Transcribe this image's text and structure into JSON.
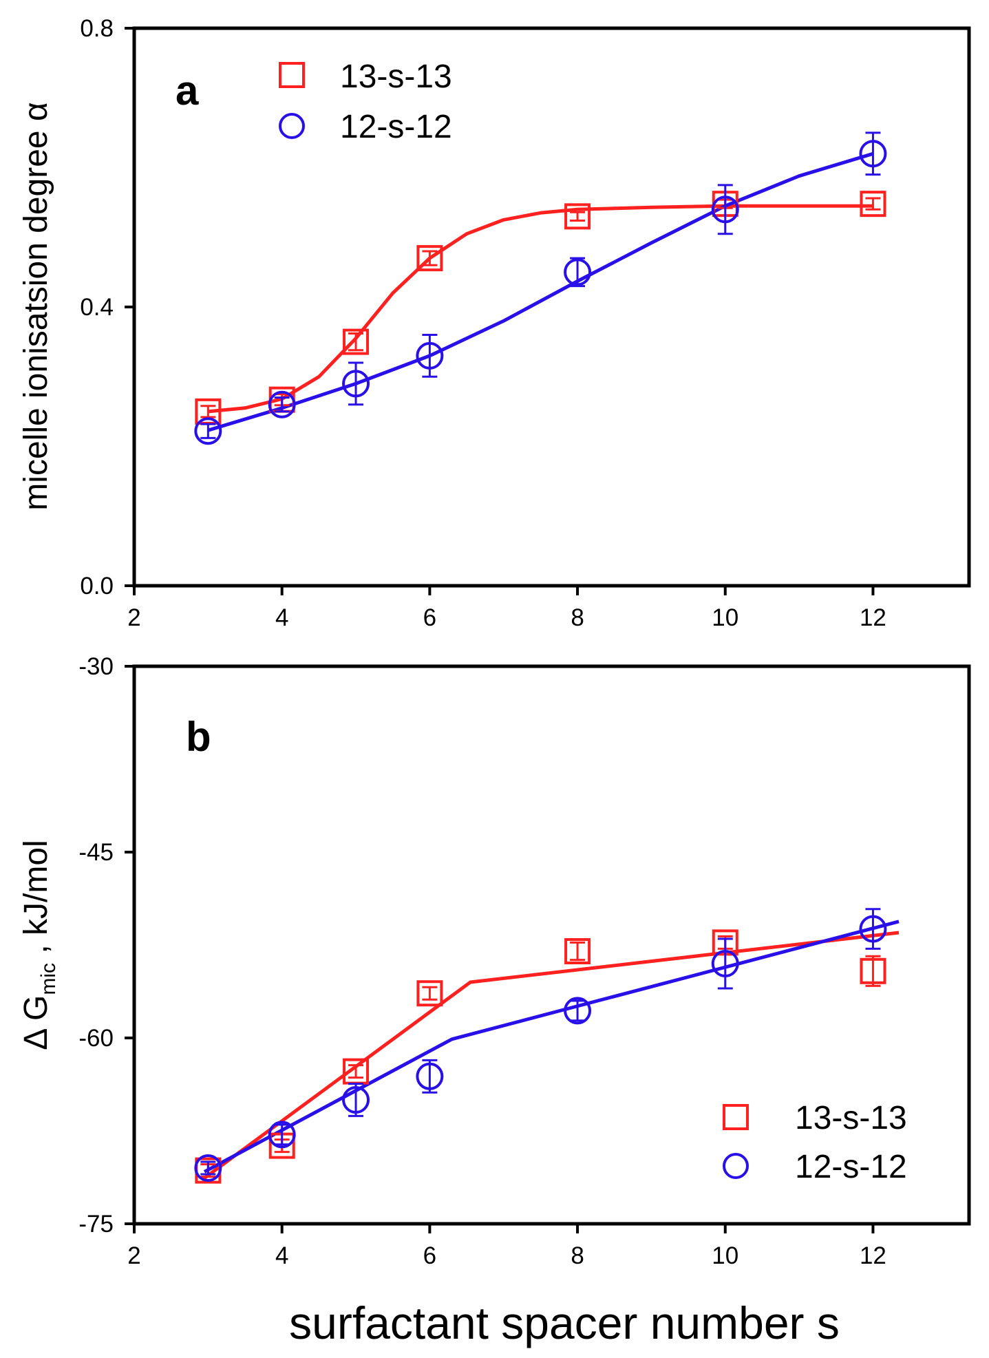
{
  "colors": {
    "red": "#ff2020",
    "blue": "#2a10e8",
    "axis": "#000000"
  },
  "chart_data": [
    {
      "type": "scatter",
      "panel_label": "a",
      "ylabel": "micelle ionisatsion degree α",
      "xlabel": "",
      "xlim": [
        2,
        13.3
      ],
      "ylim": [
        0,
        0.8
      ],
      "xticks": [
        "2",
        "4",
        "6",
        "8",
        "10",
        "12"
      ],
      "yticks": [
        "0.0",
        "0.4",
        "0.8"
      ],
      "legend_position": "top-left",
      "series": [
        {
          "name": "13-s-13",
          "marker": "square",
          "color": "#ff2020",
          "x": [
            3,
            4,
            5,
            6,
            8,
            10,
            12
          ],
          "y": [
            0.25,
            0.267,
            0.35,
            0.47,
            0.53,
            0.548,
            0.548
          ],
          "err": [
            0.008,
            0.008,
            0.012,
            0.01,
            0.006,
            0.006,
            0.008
          ],
          "fit": [
            [
              3,
              0.25
            ],
            [
              3.5,
              0.255
            ],
            [
              4,
              0.268
            ],
            [
              4.5,
              0.3
            ],
            [
              5,
              0.355
            ],
            [
              5.5,
              0.42
            ],
            [
              6,
              0.47
            ],
            [
              6.5,
              0.505
            ],
            [
              7,
              0.525
            ],
            [
              7.5,
              0.535
            ],
            [
              8,
              0.54
            ],
            [
              9,
              0.543
            ],
            [
              10,
              0.545
            ],
            [
              11,
              0.545
            ],
            [
              12,
              0.545
            ]
          ]
        },
        {
          "name": "12-s-12",
          "marker": "circle",
          "color": "#2a10e8",
          "x": [
            3,
            4,
            5,
            6,
            8,
            10,
            12
          ],
          "y": [
            0.222,
            0.26,
            0.29,
            0.33,
            0.45,
            0.54,
            0.62
          ],
          "err": [
            0.01,
            0.01,
            0.03,
            0.03,
            0.02,
            0.035,
            0.03
          ],
          "fit": [
            [
              3,
              0.223
            ],
            [
              4,
              0.255
            ],
            [
              5,
              0.29
            ],
            [
              6,
              0.33
            ],
            [
              7,
              0.38
            ],
            [
              8,
              0.437
            ],
            [
              9,
              0.492
            ],
            [
              10,
              0.545
            ],
            [
              11,
              0.588
            ],
            [
              12,
              0.62
            ]
          ]
        }
      ]
    },
    {
      "type": "scatter",
      "panel_label": "b",
      "ylabel": "Δ G",
      "ylabel_sub": "mic",
      "ylabel_units": " ,  kJ/mol",
      "xlabel": "surfactant spacer number s",
      "xlim": [
        2,
        13.3
      ],
      "ylim": [
        -75,
        -30
      ],
      "xticks": [
        "2",
        "4",
        "6",
        "8",
        "10",
        "12"
      ],
      "yticks": [
        "-30",
        "-45",
        "-60",
        "-75"
      ],
      "legend_position": "bottom-right",
      "series": [
        {
          "name": "13-s-13",
          "marker": "square",
          "color": "#ff2020",
          "x": [
            3,
            4,
            5,
            6,
            8,
            10,
            12
          ],
          "y": [
            -70.7,
            -68.7,
            -62.7,
            -56.4,
            -53.0,
            -52.3,
            -54.6
          ],
          "err": [
            0.5,
            0.5,
            0.5,
            0.5,
            0.7,
            0.5,
            1.2
          ],
          "fit": [
            [
              2.93,
              -71.4
            ],
            [
              6.55,
              -55.5
            ],
            [
              12.35,
              -51.5
            ]
          ]
        },
        {
          "name": "12-s-12",
          "marker": "circle",
          "color": "#2a10e8",
          "x": [
            3,
            4,
            5,
            6,
            8,
            10,
            12
          ],
          "y": [
            -70.5,
            -67.8,
            -65.0,
            -63.1,
            -57.8,
            -54.0,
            -51.2
          ],
          "err": [
            0.5,
            0.8,
            1.3,
            1.3,
            0.8,
            2.0,
            1.6
          ],
          "fit": [
            [
              2.95,
              -70.8
            ],
            [
              6.3,
              -60.1
            ],
            [
              12.35,
              -50.6
            ]
          ]
        }
      ]
    }
  ]
}
